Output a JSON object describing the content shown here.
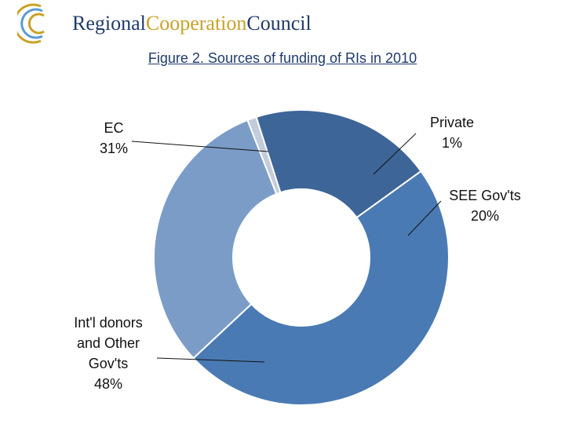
{
  "header": {
    "brand_part1": "Regional",
    "brand_part2": "Cooperation",
    "brand_part3": "Council"
  },
  "colors": {
    "brand_navy": "#1f3a6b",
    "brand_gold": "#c9a227",
    "logo_ring": "#5b9bd5"
  },
  "chart_data": {
    "type": "pie",
    "title": "Figure 2. Sources of funding of RIs in 2010",
    "donut": true,
    "slices": [
      {
        "label_lines": [
          "EC"
        ],
        "percent_label": "31%",
        "value": 31,
        "color": "#7b9cc7"
      },
      {
        "label_lines": [
          "Private"
        ],
        "percent_label": "1%",
        "value": 1,
        "color": "#c3ccdb"
      },
      {
        "label_lines": [
          "SEE Gov'ts"
        ],
        "percent_label": "20%",
        "value": 20,
        "color": "#3e6598"
      },
      {
        "label_lines": [
          "Int'l donors",
          "and Other",
          "Gov'ts"
        ],
        "percent_label": "48%",
        "value": 48,
        "color": "#4a7ab3"
      }
    ]
  }
}
